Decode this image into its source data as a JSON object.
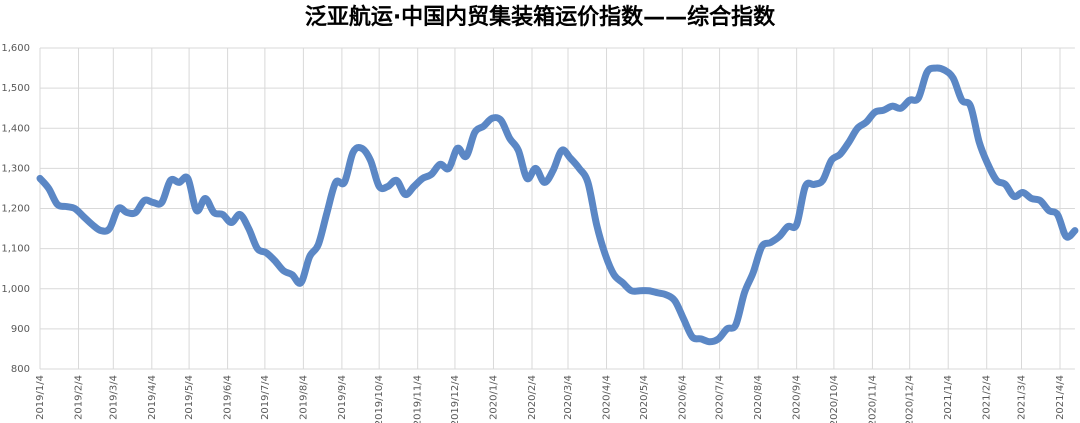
{
  "chart_data": {
    "type": "line",
    "title": "泛亚航运·中国内贸集装箱运价指数——综合指数",
    "x": [
      "2019/1/4",
      "2019/1/11",
      "2019/1/18",
      "2019/1/25",
      "2019/2/1",
      "2019/2/8",
      "2019/2/15",
      "2019/2/22",
      "2019/3/1",
      "2019/3/8",
      "2019/3/15",
      "2019/3/22",
      "2019/3/29",
      "2019/4/5",
      "2019/4/12",
      "2019/4/19",
      "2019/4/26",
      "2019/5/3",
      "2019/5/10",
      "2019/5/17",
      "2019/5/24",
      "2019/5/31",
      "2019/6/7",
      "2019/6/14",
      "2019/6/21",
      "2019/6/28",
      "2019/7/5",
      "2019/7/12",
      "2019/7/19",
      "2019/7/26",
      "2019/8/2",
      "2019/8/9",
      "2019/8/16",
      "2019/8/23",
      "2019/8/30",
      "2019/9/6",
      "2019/9/13",
      "2019/9/20",
      "2019/9/27",
      "2019/10/4",
      "2019/10/11",
      "2019/10/18",
      "2019/10/25",
      "2019/11/1",
      "2019/11/8",
      "2019/11/15",
      "2019/11/22",
      "2019/11/29",
      "2019/12/6",
      "2019/12/13",
      "2019/12/20",
      "2019/12/27",
      "2020/1/3",
      "2020/1/10",
      "2020/1/17",
      "2020/1/24",
      "2020/1/31",
      "2020/2/7",
      "2020/2/14",
      "2020/2/21",
      "2020/2/28",
      "2020/3/6",
      "2020/3/13",
      "2020/3/20",
      "2020/3/27",
      "2020/4/3",
      "2020/4/10",
      "2020/4/17",
      "2020/4/24",
      "2020/5/1",
      "2020/5/8",
      "2020/5/15",
      "2020/5/22",
      "2020/5/29",
      "2020/6/5",
      "2020/6/12",
      "2020/6/19",
      "2020/6/26",
      "2020/7/3",
      "2020/7/10",
      "2020/7/17",
      "2020/7/24",
      "2020/7/31",
      "2020/8/7",
      "2020/8/14",
      "2020/8/21",
      "2020/8/28",
      "2020/9/4",
      "2020/9/11",
      "2020/9/18",
      "2020/9/25",
      "2020/10/2",
      "2020/10/9",
      "2020/10/16",
      "2020/10/23",
      "2020/10/30",
      "2020/11/6",
      "2020/11/13",
      "2020/11/20",
      "2020/11/27",
      "2020/12/4",
      "2020/12/11",
      "2020/12/18",
      "2020/12/25",
      "2021/1/1",
      "2021/1/8",
      "2021/1/15",
      "2021/1/22",
      "2021/1/29",
      "2021/2/5",
      "2021/2/12",
      "2021/2/19",
      "2021/2/26",
      "2021/3/5",
      "2021/3/12",
      "2021/3/19",
      "2021/3/26",
      "2021/4/2",
      "2021/4/9",
      "2021/4/16"
    ],
    "series": [
      {
        "name": "综合指数",
        "color": "#5b87c5",
        "values": [
          1275,
          1250,
          1210,
          1205,
          1200,
          1180,
          1160,
          1145,
          1150,
          1200,
          1190,
          1190,
          1220,
          1215,
          1215,
          1270,
          1265,
          1275,
          1195,
          1225,
          1190,
          1185,
          1165,
          1185,
          1150,
          1100,
          1090,
          1070,
          1045,
          1035,
          1015,
          1080,
          1110,
          1190,
          1265,
          1265,
          1340,
          1350,
          1320,
          1255,
          1255,
          1270,
          1235,
          1255,
          1275,
          1285,
          1310,
          1300,
          1350,
          1330,
          1390,
          1405,
          1425,
          1420,
          1375,
          1345,
          1275,
          1300,
          1265,
          1295,
          1345,
          1325,
          1300,
          1265,
          1160,
          1085,
          1035,
          1015,
          995,
          995,
          995,
          990,
          985,
          970,
          925,
          880,
          875,
          868,
          875,
          900,
          910,
          990,
          1040,
          1105,
          1115,
          1130,
          1155,
          1160,
          1255,
          1260,
          1270,
          1320,
          1335,
          1365,
          1400,
          1415,
          1440,
          1445,
          1455,
          1450,
          1470,
          1475,
          1540,
          1550,
          1545,
          1525,
          1470,
          1455,
          1365,
          1310,
          1270,
          1260,
          1230,
          1240,
          1225,
          1220,
          1195,
          1185,
          1130,
          1145
        ]
      }
    ],
    "xlim": [
      "2019/1/4",
      "2021/4/16"
    ],
    "xticks": [
      "2019/1/4",
      "2019/2/4",
      "2019/3/4",
      "2019/4/4",
      "2019/5/4",
      "2019/6/4",
      "2019/7/4",
      "2019/8/4",
      "2019/9/4",
      "2019/10/4",
      "2019/11/4",
      "2019/12/4",
      "2020/1/4",
      "2020/2/4",
      "2020/3/4",
      "2020/4/4",
      "2020/5/4",
      "2020/6/4",
      "2020/7/4",
      "2020/8/4",
      "2020/9/4",
      "2020/10/4",
      "2020/11/4",
      "2020/12/4",
      "2021/1/4",
      "2021/2/4",
      "2021/3/4",
      "2021/4/4"
    ],
    "ylim": [
      800,
      1600
    ],
    "yticks": [
      800,
      900,
      {
        "value": 1000,
        "label": "1,000"
      },
      {
        "value": 1100,
        "label": "1,100"
      },
      {
        "value": 1200,
        "label": "1,200"
      },
      {
        "value": 1300,
        "label": "1,300"
      },
      {
        "value": 1400,
        "label": "1,400"
      },
      {
        "value": 1500,
        "label": "1,500"
      },
      {
        "value": 1600,
        "label": "1,600"
      }
    ],
    "grid": true
  }
}
